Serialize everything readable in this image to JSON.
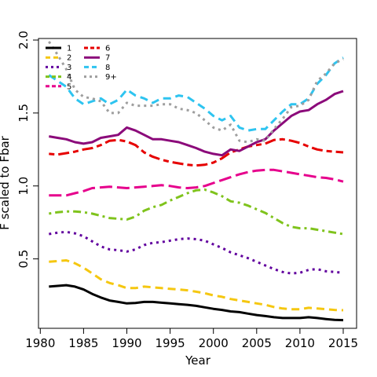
{
  "chart_data": {
    "type": "line",
    "title": "",
    "xlabel": "Year",
    "ylabel": "F scaled to Fbar",
    "xlim": [
      1980,
      2016
    ],
    "ylim": [
      0.0,
      2.0
    ],
    "x_ticks": [
      1980,
      1985,
      1990,
      1995,
      2000,
      2005,
      2010,
      2015
    ],
    "y_ticks": [
      0.5,
      1.0,
      1.5,
      2.0
    ],
    "y_tick_labels": [
      "0.5",
      "1.0",
      "1.5",
      "2.0"
    ],
    "grid": false,
    "legend": {
      "placement": "top-left",
      "columns": 2
    },
    "x": [
      1981,
      1982,
      1983,
      1984,
      1985,
      1986,
      1987,
      1988,
      1989,
      1990,
      1991,
      1992,
      1993,
      1994,
      1995,
      1996,
      1997,
      1998,
      1999,
      2000,
      2001,
      2002,
      2003,
      2004,
      2005,
      2006,
      2007,
      2008,
      2009,
      2010,
      2011,
      2012,
      2013,
      2014,
      2015
    ],
    "series": [
      {
        "name": "1",
        "color": "#000000",
        "dash": "solid",
        "values": [
          0.31,
          0.315,
          0.32,
          0.31,
          0.29,
          0.26,
          0.235,
          0.215,
          0.205,
          0.195,
          0.198,
          0.205,
          0.205,
          0.2,
          0.195,
          0.19,
          0.185,
          0.178,
          0.168,
          0.158,
          0.15,
          0.14,
          0.135,
          0.125,
          0.115,
          0.108,
          0.1,
          0.095,
          0.095,
          0.095,
          0.1,
          0.095,
          0.088,
          0.082,
          0.08
        ]
      },
      {
        "name": "2",
        "color": "#F5C710",
        "dash": "dashed",
        "values": [
          0.48,
          0.485,
          0.49,
          0.47,
          0.44,
          0.4,
          0.36,
          0.335,
          0.32,
          0.3,
          0.3,
          0.31,
          0.305,
          0.3,
          0.295,
          0.29,
          0.285,
          0.275,
          0.265,
          0.25,
          0.24,
          0.225,
          0.215,
          0.205,
          0.195,
          0.185,
          0.17,
          0.16,
          0.155,
          0.155,
          0.165,
          0.16,
          0.155,
          0.15,
          0.148
        ]
      },
      {
        "name": "3",
        "color": "#61009E",
        "dash": "dotted",
        "values": [
          0.67,
          0.68,
          0.685,
          0.675,
          0.655,
          0.62,
          0.585,
          0.565,
          0.56,
          0.55,
          0.565,
          0.595,
          0.61,
          0.615,
          0.625,
          0.635,
          0.64,
          0.635,
          0.625,
          0.6,
          0.575,
          0.545,
          0.525,
          0.505,
          0.48,
          0.455,
          0.43,
          0.41,
          0.4,
          0.405,
          0.425,
          0.43,
          0.415,
          0.41,
          0.405
        ]
      },
      {
        "name": "4",
        "color": "#7FC31C",
        "dash": "dashdot",
        "values": [
          0.81,
          0.82,
          0.825,
          0.825,
          0.82,
          0.81,
          0.795,
          0.78,
          0.775,
          0.77,
          0.79,
          0.83,
          0.855,
          0.87,
          0.9,
          0.925,
          0.95,
          0.97,
          0.975,
          0.955,
          0.93,
          0.895,
          0.885,
          0.865,
          0.84,
          0.815,
          0.78,
          0.745,
          0.72,
          0.71,
          0.71,
          0.7,
          0.69,
          0.68,
          0.67
        ]
      },
      {
        "name": "5",
        "color": "#E6008C",
        "dash": "longdash",
        "values": [
          0.935,
          0.935,
          0.935,
          0.95,
          0.965,
          0.985,
          0.99,
          0.995,
          0.99,
          0.985,
          0.99,
          0.995,
          1.0,
          1.005,
          1.0,
          0.99,
          0.985,
          0.99,
          1.0,
          1.02,
          1.04,
          1.06,
          1.08,
          1.095,
          1.105,
          1.11,
          1.11,
          1.1,
          1.09,
          1.08,
          1.07,
          1.06,
          1.055,
          1.045,
          1.03
        ]
      },
      {
        "name": "6",
        "color": "#E60000",
        "dash": "twodash",
        "values": [
          1.22,
          1.215,
          1.225,
          1.235,
          1.25,
          1.26,
          1.28,
          1.31,
          1.315,
          1.305,
          1.28,
          1.23,
          1.2,
          1.18,
          1.165,
          1.155,
          1.145,
          1.14,
          1.145,
          1.16,
          1.19,
          1.23,
          1.25,
          1.27,
          1.28,
          1.29,
          1.315,
          1.32,
          1.31,
          1.295,
          1.27,
          1.25,
          1.24,
          1.235,
          1.23
        ]
      },
      {
        "name": "7",
        "color": "#8B0A7A",
        "dash": "solid",
        "values": [
          1.34,
          1.33,
          1.32,
          1.3,
          1.29,
          1.3,
          1.33,
          1.34,
          1.35,
          1.4,
          1.38,
          1.35,
          1.32,
          1.32,
          1.31,
          1.3,
          1.28,
          1.26,
          1.235,
          1.22,
          1.21,
          1.25,
          1.24,
          1.27,
          1.3,
          1.32,
          1.38,
          1.43,
          1.48,
          1.51,
          1.52,
          1.56,
          1.59,
          1.63,
          1.65
        ]
      },
      {
        "name": "8",
        "color": "#2EC4F0",
        "dash": "dashed",
        "values": [
          1.76,
          1.72,
          1.68,
          1.6,
          1.56,
          1.58,
          1.6,
          1.56,
          1.59,
          1.66,
          1.62,
          1.6,
          1.57,
          1.6,
          1.6,
          1.62,
          1.61,
          1.57,
          1.53,
          1.48,
          1.45,
          1.48,
          1.4,
          1.38,
          1.39,
          1.39,
          1.45,
          1.51,
          1.56,
          1.56,
          1.6,
          1.7,
          1.76,
          1.84,
          1.88
        ]
      },
      {
        "name": "9+",
        "color": "#9E9E9E",
        "dash": "dotted",
        "values": [
          1.99,
          1.9,
          1.8,
          1.66,
          1.61,
          1.6,
          1.58,
          1.5,
          1.5,
          1.57,
          1.55,
          1.55,
          1.55,
          1.56,
          1.56,
          1.53,
          1.52,
          1.5,
          1.45,
          1.4,
          1.38,
          1.42,
          1.31,
          1.3,
          1.32,
          1.31,
          1.39,
          1.46,
          1.54,
          1.55,
          1.59,
          1.72,
          1.77,
          1.84,
          1.87
        ]
      }
    ]
  }
}
